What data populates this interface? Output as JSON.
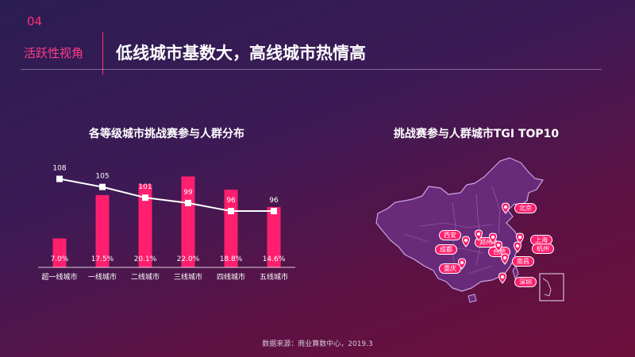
{
  "header": {
    "number": "04",
    "section": "活跃性视角",
    "title": "低线城市基数大，高线城市热情高"
  },
  "chart_data": [
    {
      "type": "bar",
      "title": "各等级城市挑战赛参与人群分布",
      "categories": [
        "超一线城市",
        "一线城市",
        "二线城市",
        "三线城市",
        "四线城市",
        "五线城市"
      ],
      "series": [
        {
          "type": "bar",
          "values": [
            7.0,
            17.5,
            20.1,
            22.0,
            18.8,
            14.6
          ],
          "labels": [
            "7.0%",
            "17.5%",
            "20.1%",
            "22.0%",
            "18.8%",
            "14.6%"
          ],
          "color": "#ff1f6e"
        },
        {
          "type": "line",
          "values": [
            108,
            105,
            101,
            99,
            96,
            96
          ],
          "color": "#ffffff"
        }
      ],
      "bar_ylim": [
        0,
        24
      ],
      "line_ylim": [
        75,
        112
      ],
      "grid": false,
      "legend": "none"
    },
    {
      "type": "map",
      "title": "挑战赛参与人群城市TGI TOP10",
      "cities": [
        "北京",
        "西安",
        "郑州",
        "上海",
        "成都",
        "合肥",
        "杭州",
        "重庆",
        "南昌",
        "深圳"
      ]
    }
  ],
  "footer": {
    "source": "数据来源：商业算数中心，2019.3"
  },
  "colors": {
    "accent": "#ff1f6e",
    "line": "#ffffff",
    "map_fill": "#6a2a7a",
    "map_stroke": "#c9a6e6"
  }
}
